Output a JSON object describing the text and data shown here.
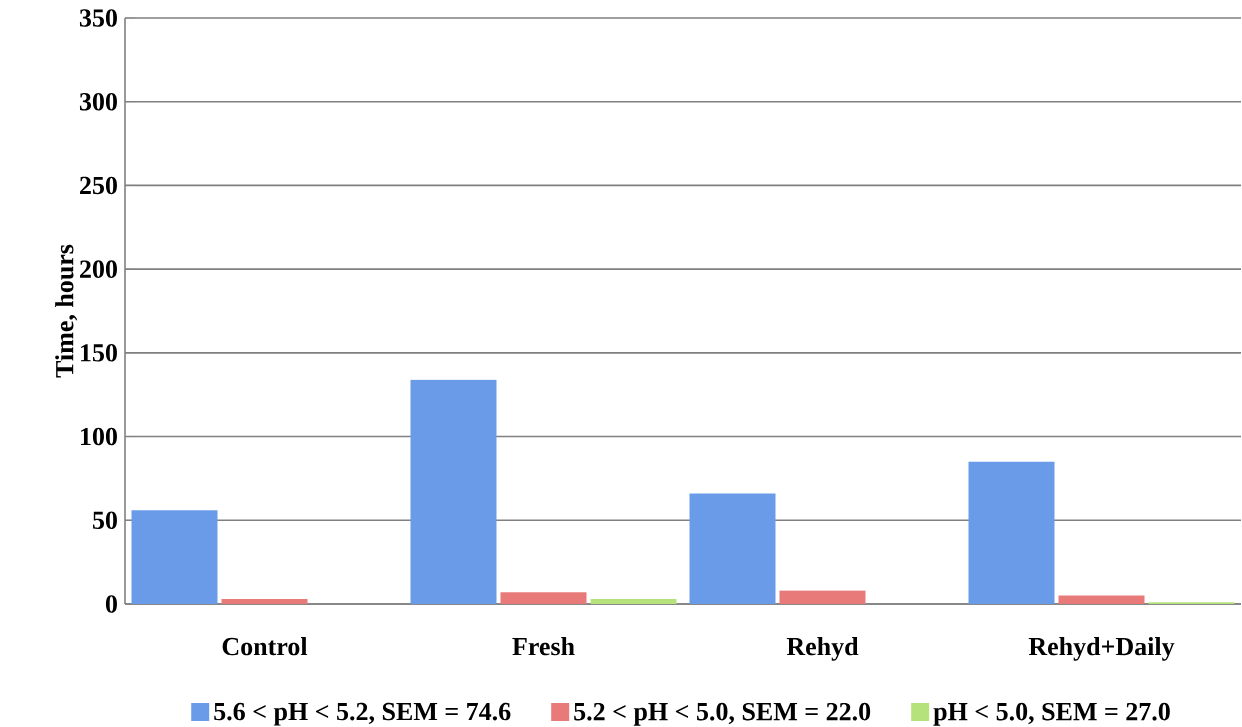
{
  "chart_data": {
    "type": "bar",
    "ylabel": "Time, hours",
    "categories": [
      "Control",
      "Fresh",
      "Rehyd",
      "Rehyd+Daily"
    ],
    "series": [
      {
        "name": "5.6 < pH < 5.2, SEM = 74.6",
        "color": "#6a9be8",
        "values": [
          56,
          134,
          66,
          85
        ]
      },
      {
        "name": "5.2 < pH < 5.0, SEM = 22.0",
        "color": "#e87a7a",
        "values": [
          3,
          7,
          8,
          5
        ]
      },
      {
        "name": "pH < 5.0, SEM = 27.0",
        "color": "#b5e27a",
        "values": [
          null,
          3,
          null,
          1
        ]
      }
    ],
    "ylim": [
      0,
      350
    ],
    "yticks": [
      0,
      50,
      100,
      150,
      200,
      250,
      300,
      350
    ],
    "grid": "y",
    "legend": "bottom"
  }
}
